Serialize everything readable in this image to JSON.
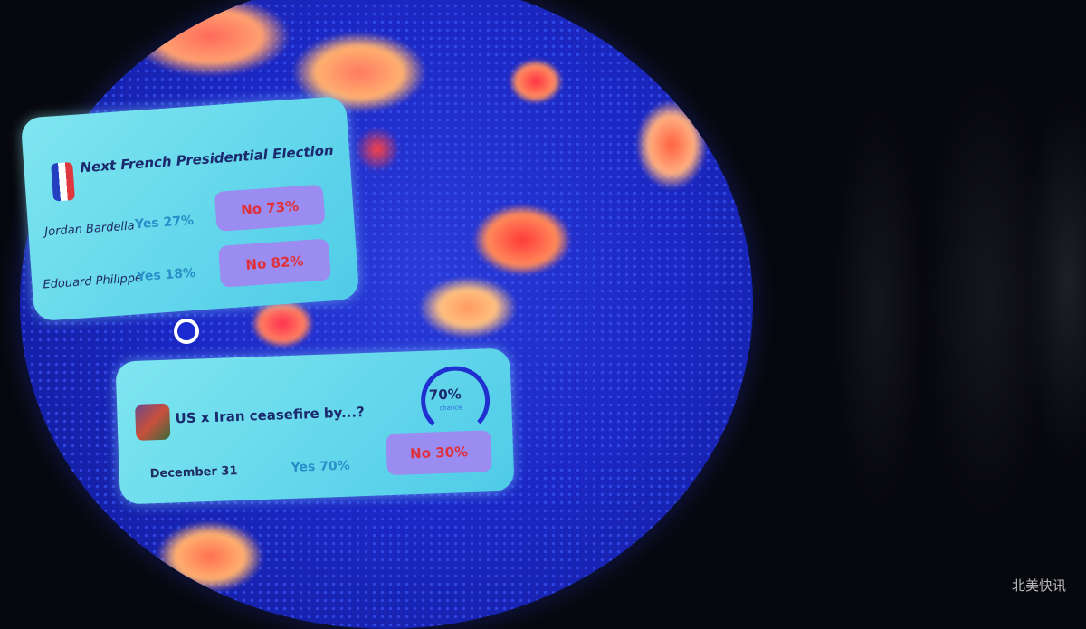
{
  "card_election": {
    "title": "Next French Presidential Election",
    "flag_icon": "france-flag-icon",
    "rows": [
      {
        "name": "Jordan Bardella",
        "yes": "Yes 27%",
        "no": "No 73%"
      },
      {
        "name": "Edouard Philippe",
        "yes": "Yes 18%",
        "no": "No 82%"
      }
    ]
  },
  "card_ceasefire": {
    "title": "US x Iran ceasefire by...?",
    "gauge_value": "70%",
    "gauge_fraction": 0.7,
    "gauge_caption": "chance",
    "row": {
      "name": "December 31",
      "yes": "Yes 70%",
      "no": "No 30%"
    }
  },
  "watermark": "北美快讯",
  "colors": {
    "globe": "#1c28c4",
    "card": "#6fdcec",
    "no_button": "#9a8cf0",
    "no_text": "#e0303c",
    "yes_text": "#2a8fc8"
  }
}
